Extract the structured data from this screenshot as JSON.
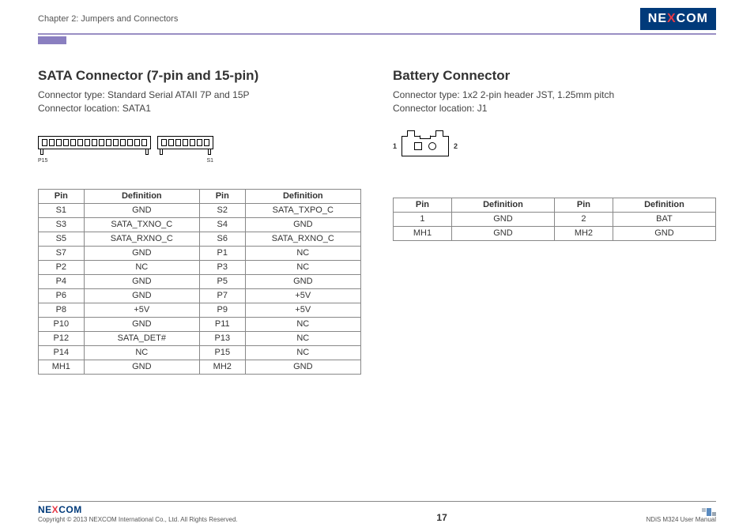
{
  "header": {
    "chapter": "Chapter 2: Jumpers and Connectors",
    "logo_text_pre": "NE",
    "logo_text_x": "X",
    "logo_text_post": "COM"
  },
  "left": {
    "title": "SATA Connector (7-pin and 15-pin)",
    "type_line": "Connector type: Standard Serial ATAII 7P and 15P",
    "loc_line": "Connector location: SATA1",
    "diag": {
      "label_p15": "P15",
      "label_s1": "S1",
      "pins15": 15,
      "pins7": 7
    },
    "table": {
      "headers": [
        "Pin",
        "Definition",
        "Pin",
        "Definition"
      ],
      "rows": [
        [
          "S1",
          "GND",
          "S2",
          "SATA_TXPO_C"
        ],
        [
          "S3",
          "SATA_TXNO_C",
          "S4",
          "GND"
        ],
        [
          "S5",
          "SATA_RXNO_C",
          "S6",
          "SATA_RXNO_C"
        ],
        [
          "S7",
          "GND",
          "P1",
          "NC"
        ],
        [
          "P2",
          "NC",
          "P3",
          "NC"
        ],
        [
          "P4",
          "GND",
          "P5",
          "GND"
        ],
        [
          "P6",
          "GND",
          "P7",
          "+5V"
        ],
        [
          "P8",
          "+5V",
          "P9",
          "+5V"
        ],
        [
          "P10",
          "GND",
          "P11",
          "NC"
        ],
        [
          "P12",
          "SATA_DET#",
          "P13",
          "NC"
        ],
        [
          "P14",
          "NC",
          "P15",
          "NC"
        ],
        [
          "MH1",
          "GND",
          "MH2",
          "GND"
        ]
      ]
    }
  },
  "right": {
    "title": "Battery Connector",
    "type_line": "Connector type: 1x2 2-pin header JST, 1.25mm pitch",
    "loc_line": "Connector location: J1",
    "diag": {
      "label_1": "1",
      "label_2": "2"
    },
    "table": {
      "headers": [
        "Pin",
        "Definition",
        "Pin",
        "Definition"
      ],
      "rows": [
        [
          "1",
          "GND",
          "2",
          "BAT"
        ],
        [
          "MH1",
          "GND",
          "MH2",
          "GND"
        ]
      ]
    }
  },
  "footer": {
    "copyright": "Copyright © 2013 NEXCOM International Co., Ltd. All Rights Reserved.",
    "page": "17",
    "manual": "NDiS M324 User Manual"
  },
  "colors": {
    "hr": "#9a8fc4",
    "logo_bg": "#003a7a",
    "logo_x": "#e63946",
    "border": "#888888"
  }
}
